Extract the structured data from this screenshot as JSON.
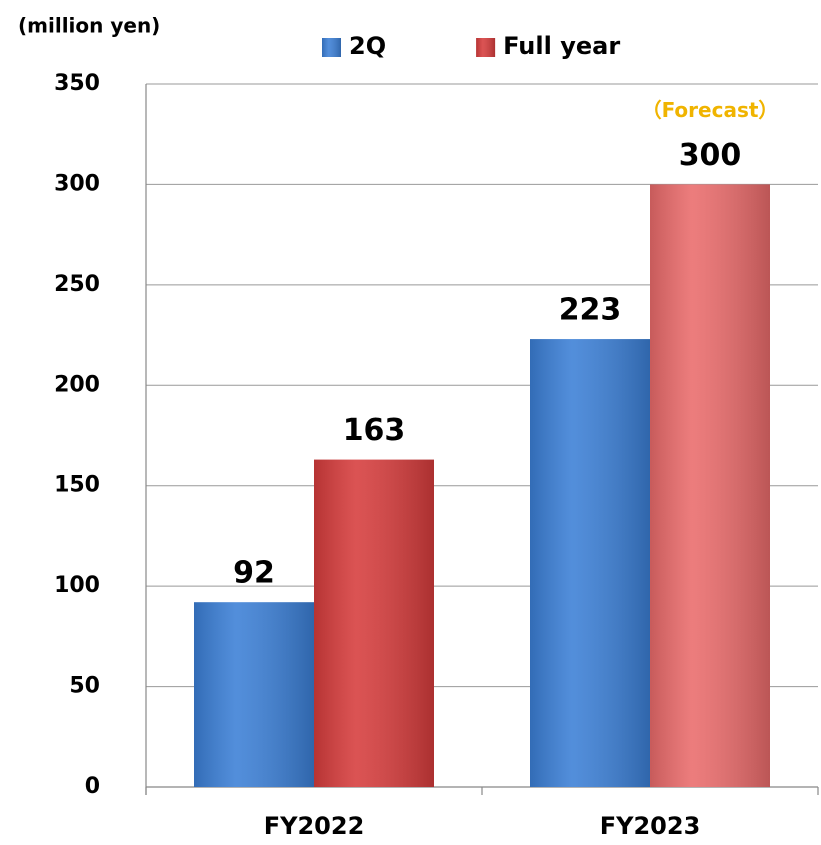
{
  "chart_data": {
    "type": "bar",
    "y_axis_label": "(million yen)",
    "categories": [
      "FY2022",
      "FY2023"
    ],
    "series": [
      {
        "name": "2Q",
        "color": "#3b7fd6",
        "values": [
          92,
          223
        ]
      },
      {
        "name": "Full year",
        "color": "#d63c3c",
        "point_colors": [
          "#d63c3c",
          "#ea6b6b"
        ],
        "values": [
          163,
          300
        ]
      }
    ],
    "annotations": [
      {
        "text": "（Forecast）",
        "series": 1,
        "category": 1,
        "color": "#f0b400"
      }
    ],
    "ylim": [
      0,
      350
    ],
    "yticks": [
      0,
      50,
      100,
      150,
      200,
      250,
      300,
      350
    ],
    "grid": true,
    "legend": "top"
  }
}
